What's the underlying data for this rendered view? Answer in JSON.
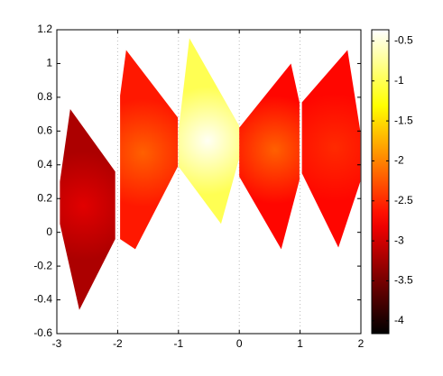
{
  "chart_data": {
    "type": "patch",
    "xlim": [
      -3,
      2
    ],
    "xticks": [
      -3,
      -2,
      -1,
      0,
      1,
      2
    ],
    "ylim": [
      -0.6,
      1.2
    ],
    "yticks": [
      -0.6,
      -0.4,
      -0.2,
      0,
      0.2,
      0.4,
      0.6,
      0.8,
      1,
      1.2
    ],
    "xgrid": true,
    "colormap": "hot",
    "clim": [
      -4.16,
      -0.36
    ],
    "cticks": [
      -4,
      -3.5,
      -3,
      -2.5,
      -2,
      -1.5,
      -1,
      -0.5
    ],
    "regions": [
      {
        "value": -3.2,
        "peak": -2.9,
        "x": [
          -2.78,
          -2.04,
          -2.04,
          -2.63,
          -2.95,
          -2.95
        ],
        "y": [
          0.73,
          0.36,
          -0.04,
          -0.46,
          0.05,
          0.3
        ]
      },
      {
        "value": -2.6,
        "peak": -2.2,
        "x": [
          -1.86,
          -1.01,
          -1.01,
          -1.71,
          -1.96,
          -1.96
        ],
        "y": [
          1.08,
          0.68,
          0.39,
          -0.1,
          -0.04,
          0.81
        ]
      },
      {
        "value": -1.0,
        "peak": -0.4,
        "x": [
          -0.82,
          0,
          0,
          -0.3,
          -1.0,
          -1.0
        ],
        "y": [
          1.15,
          0.63,
          0.44,
          0.05,
          0.39,
          0.6
        ]
      },
      {
        "value": -2.7,
        "peak": -2.2,
        "x": [
          0.85,
          0.99,
          0.99,
          0.69,
          0,
          0
        ],
        "y": [
          1.0,
          0.77,
          0.31,
          -0.1,
          0.33,
          0.62
        ]
      },
      {
        "value": -2.7,
        "peak": -2.5,
        "x": [
          1.78,
          1.99,
          1.99,
          1.63,
          1.03,
          1.03
        ],
        "y": [
          1.08,
          0.6,
          0.3,
          -0.09,
          0.35,
          0.77
        ]
      }
    ]
  }
}
